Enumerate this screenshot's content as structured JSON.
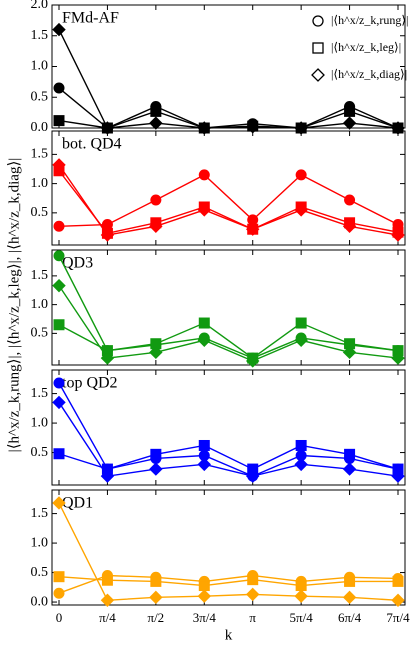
{
  "chart_data": [
    {
      "type": "line",
      "title": "FMd-AF",
      "ylim": [
        0,
        2
      ],
      "yticks": [
        {
          "value": 0,
          "label": "0.0"
        },
        {
          "value": 0.5,
          "label": "0.5"
        },
        {
          "value": 1,
          "label": "1.0"
        },
        {
          "value": 1.5,
          "label": "1.5"
        },
        {
          "value": 2,
          "label": "2.0"
        }
      ],
      "legend": "upper right",
      "series": [
        {
          "name": "|⟨h^x/z_k,rung⟩|",
          "marker": "circle",
          "color": "#000000",
          "values": [
            0.65,
            0,
            0.35,
            0,
            0.07,
            0,
            0.35,
            0
          ]
        },
        {
          "name": "|⟨h^x/z_k,leg⟩|",
          "marker": "square",
          "color": "#000000",
          "values": [
            0.12,
            0,
            0.27,
            0,
            0.03,
            0,
            0.27,
            0
          ]
        },
        {
          "name": "|⟨h^x/z_k,diag⟩|",
          "marker": "diamond",
          "color": "#000000",
          "values": [
            1.6,
            0,
            0.08,
            0,
            0.02,
            0,
            0.08,
            0
          ]
        }
      ]
    },
    {
      "type": "line",
      "title": "bot. QD4",
      "ylim": [
        -0.05,
        1.9
      ],
      "yticks": [
        {
          "value": 0.5,
          "label": "0.5"
        },
        {
          "value": 1,
          "label": "1.0"
        },
        {
          "value": 1.5,
          "label": "1.5"
        }
      ],
      "series": [
        {
          "marker": "circle",
          "color": "#ff0000",
          "values": [
            0.27,
            0.3,
            0.72,
            1.15,
            0.38,
            1.15,
            0.72,
            0.3
          ]
        },
        {
          "marker": "square",
          "color": "#ff0000",
          "values": [
            1.22,
            0.15,
            0.33,
            0.6,
            0.22,
            0.6,
            0.33,
            0.17
          ]
        },
        {
          "marker": "diamond",
          "color": "#ff0000",
          "values": [
            1.32,
            0.12,
            0.27,
            0.55,
            0.22,
            0.55,
            0.27,
            0.12
          ]
        }
      ]
    },
    {
      "type": "line",
      "title": "QD3",
      "ylim": [
        -0.05,
        1.95
      ],
      "ylabel": "|⟨h^x/z_k,rung⟩|, |⟨h^x/z_k,leg⟩|, |⟨h^x/z_k,diag⟩|",
      "yticks": [
        {
          "value": 0.5,
          "label": "0.5"
        },
        {
          "value": 1,
          "label": "1.0"
        },
        {
          "value": 1.5,
          "label": "1.5"
        }
      ],
      "series": [
        {
          "marker": "circle",
          "color": "#119a11",
          "values": [
            1.85,
            0.2,
            0.3,
            0.42,
            0.07,
            0.42,
            0.3,
            0.2
          ]
        },
        {
          "marker": "square",
          "color": "#119a11",
          "values": [
            0.65,
            0.2,
            0.32,
            0.68,
            0.07,
            0.68,
            0.32,
            0.2
          ]
        },
        {
          "marker": "diamond",
          "color": "#119a11",
          "values": [
            1.33,
            0.07,
            0.17,
            0.38,
            0.02,
            0.38,
            0.17,
            0.07
          ]
        }
      ]
    },
    {
      "type": "line",
      "title": "top QD2",
      "ylim": [
        -0.05,
        1.9
      ],
      "yticks": [
        {
          "value": 0.5,
          "label": "0.5"
        },
        {
          "value": 1,
          "label": "1.0"
        },
        {
          "value": 1.5,
          "label": "1.5"
        }
      ],
      "series": [
        {
          "marker": "circle",
          "color": "#0000ff",
          "values": [
            1.68,
            0.22,
            0.4,
            0.45,
            0.1,
            0.45,
            0.4,
            0.22
          ]
        },
        {
          "marker": "square",
          "color": "#0000ff",
          "values": [
            0.48,
            0.22,
            0.47,
            0.62,
            0.22,
            0.62,
            0.47,
            0.22
          ]
        },
        {
          "marker": "diamond",
          "color": "#0000ff",
          "values": [
            1.35,
            0.1,
            0.22,
            0.3,
            0.1,
            0.3,
            0.22,
            0.1
          ]
        }
      ]
    },
    {
      "type": "line",
      "title": "QD1",
      "ylim": [
        -0.05,
        1.9
      ],
      "xlabel": "k",
      "categories": [
        "0",
        "π/4",
        "π/2",
        "3π/4",
        "π",
        "5π/4",
        "6π/4",
        "7π/4"
      ],
      "yticks": [
        {
          "value": 0,
          "label": "0.0"
        },
        {
          "value": 0.5,
          "label": "0.5"
        },
        {
          "value": 1,
          "label": "1.0"
        },
        {
          "value": 1.5,
          "label": "1.5"
        }
      ],
      "series": [
        {
          "marker": "circle",
          "color": "#ffa500",
          "values": [
            0.15,
            0.45,
            0.42,
            0.35,
            0.45,
            0.35,
            0.42,
            0.4
          ]
        },
        {
          "marker": "square",
          "color": "#ffa500",
          "values": [
            0.43,
            0.37,
            0.35,
            0.28,
            0.38,
            0.28,
            0.35,
            0.35
          ]
        },
        {
          "marker": "diamond",
          "color": "#ffa500",
          "values": [
            1.68,
            0.03,
            0.08,
            0.1,
            0.13,
            0.1,
            0.08,
            0.03
          ]
        }
      ]
    }
  ]
}
